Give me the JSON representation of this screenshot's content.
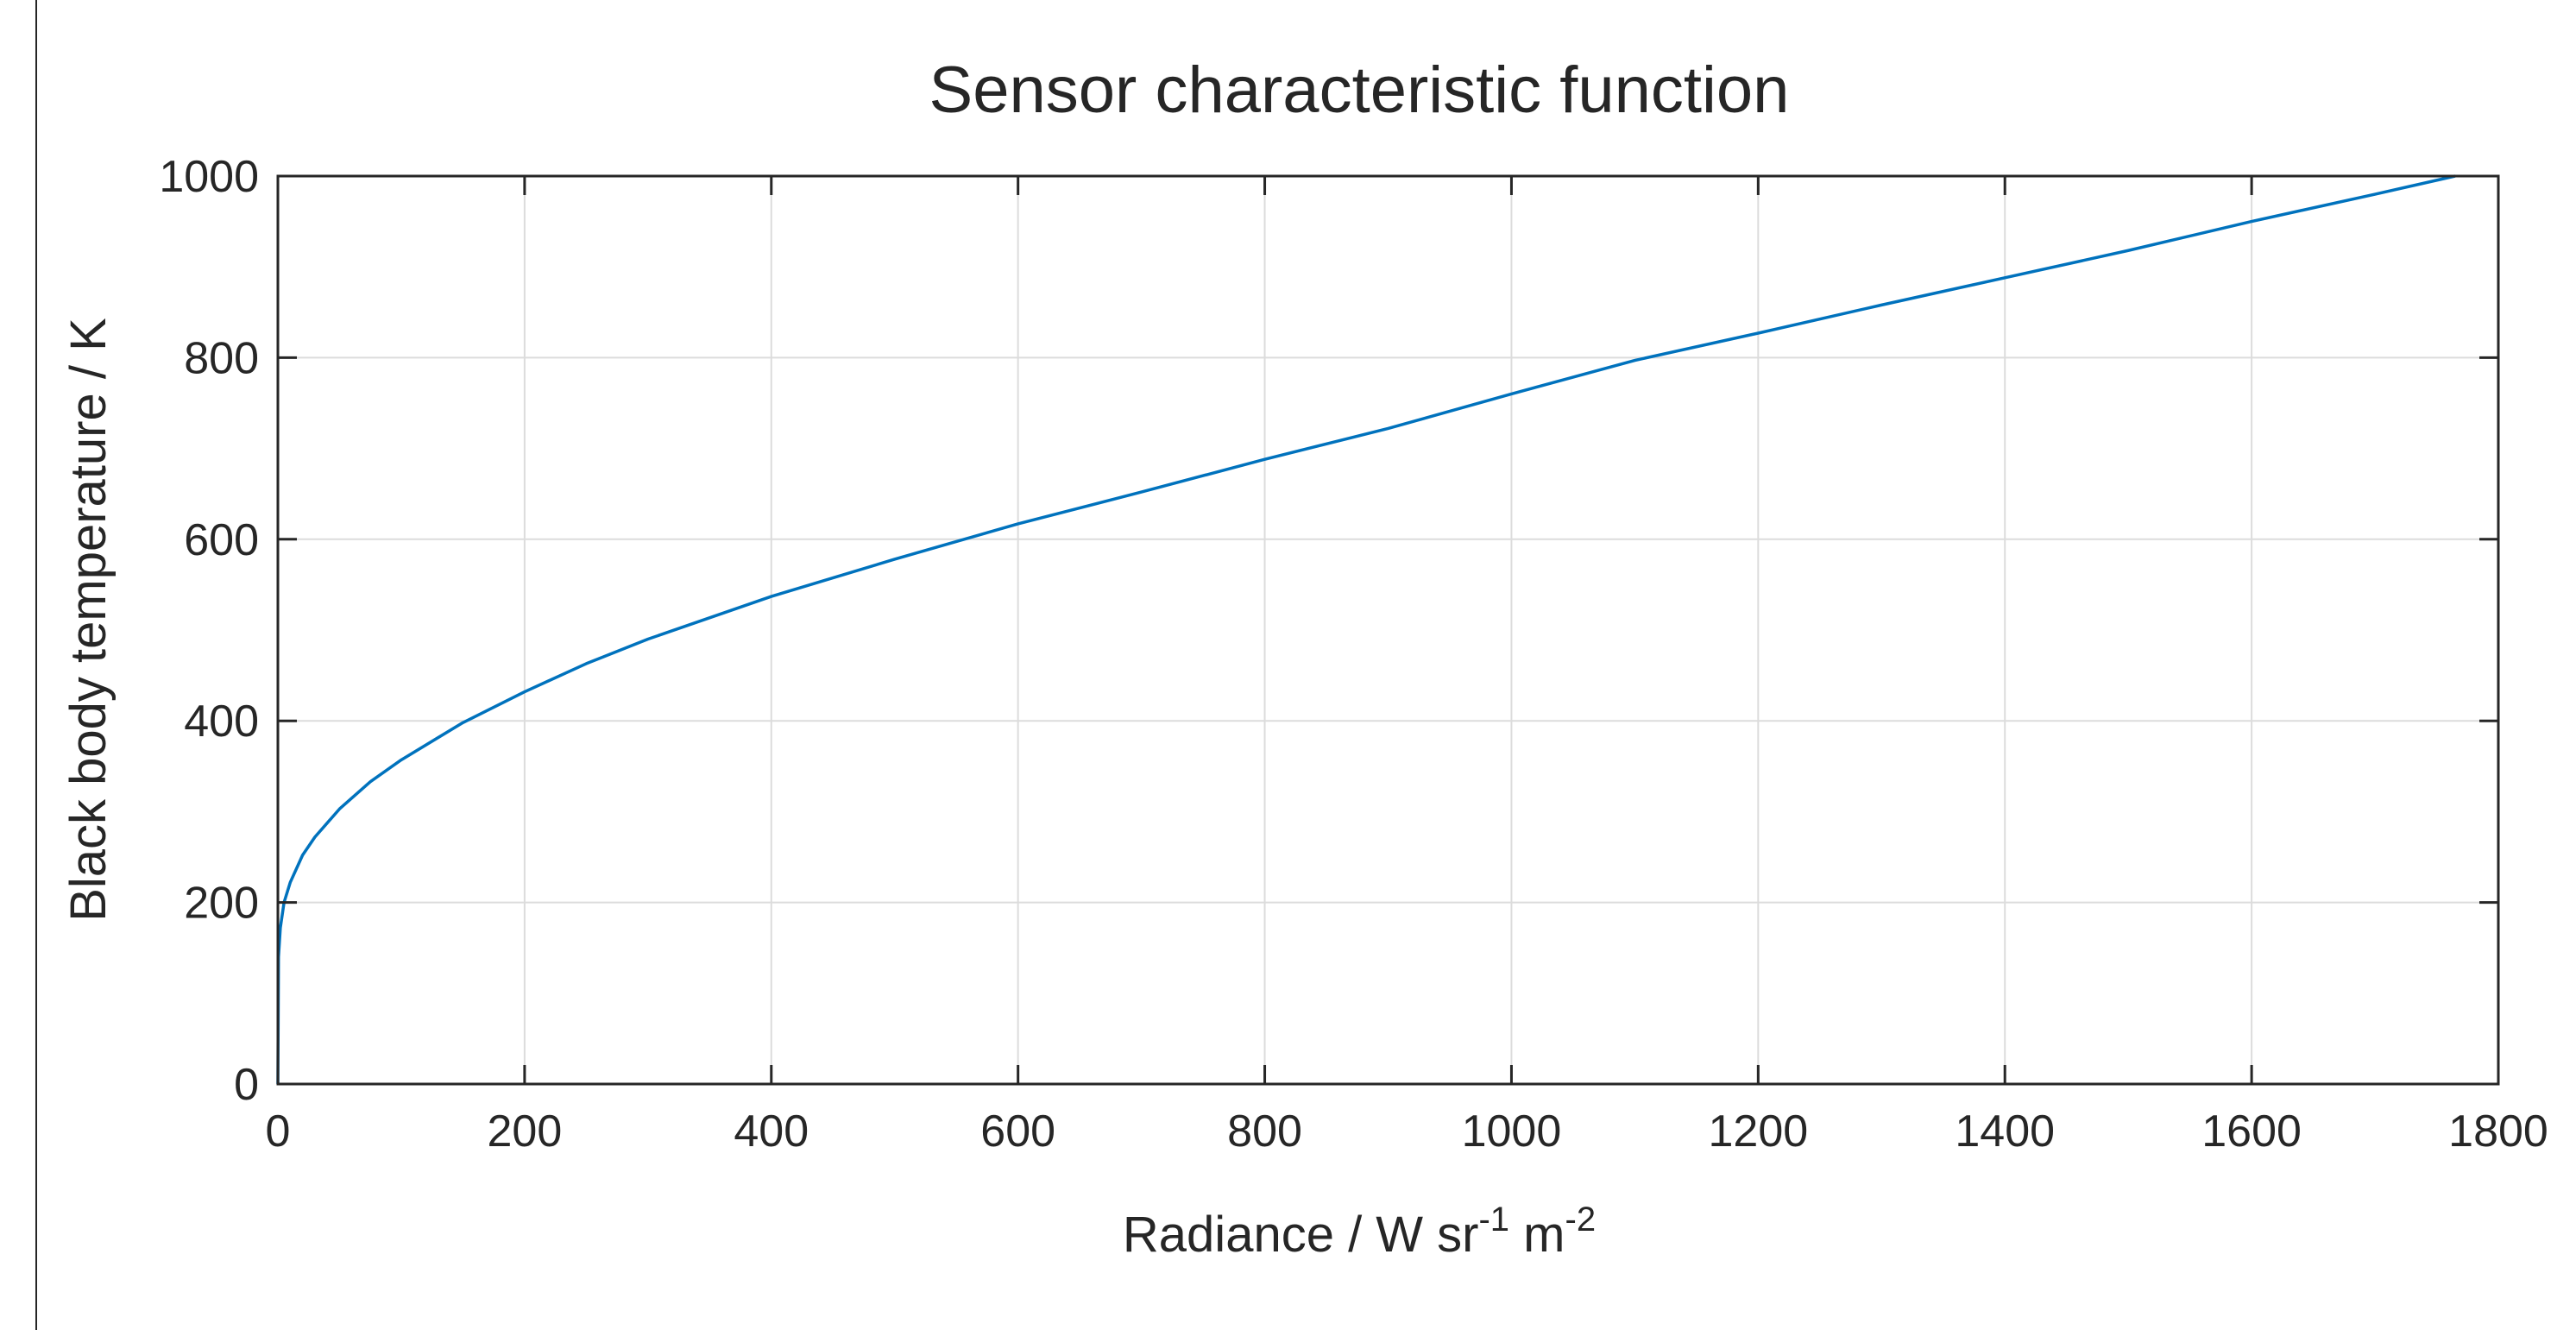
{
  "chart_data": {
    "type": "line",
    "title": "Sensor characteristic function",
    "xlabel": {
      "base": "Radiance / W sr",
      "exp1": "-1",
      "mid": " m",
      "exp2": "-2"
    },
    "ylabel": "Black body temperature / K",
    "xlim": [
      0,
      1800
    ],
    "ylim": [
      0,
      1000
    ],
    "xticks": [
      0,
      200,
      400,
      600,
      800,
      1000,
      1200,
      1400,
      1600,
      1800
    ],
    "yticks": [
      0,
      200,
      400,
      600,
      800,
      1000
    ],
    "xtick_labels": [
      "0",
      "200",
      "400",
      "600",
      "800",
      "1000",
      "1200",
      "1400",
      "1600",
      "1800"
    ],
    "ytick_labels": [
      "0",
      "200",
      "400",
      "600",
      "800",
      "1000"
    ],
    "grid": true,
    "series": [
      {
        "color": "#0072bd",
        "x": [
          0,
          0.5,
          2,
          5,
          10,
          20,
          30,
          50,
          75,
          100,
          150,
          200,
          250,
          300,
          400,
          500,
          600,
          700,
          800,
          900,
          1000,
          1100,
          1200,
          1300,
          1400,
          1500,
          1600,
          1700,
          1765
        ],
        "y": [
          0,
          140,
          172,
          200,
          222,
          252,
          272,
          303,
          333,
          357,
          398,
          432,
          463,
          490,
          537,
          578,
          617,
          652,
          688,
          722,
          760,
          797,
          827,
          858,
          888,
          918,
          950,
          980,
          1000
        ]
      }
    ]
  },
  "colors": {
    "line": "#0072bd",
    "grid": "#dcdcdc",
    "axis": "#262626"
  }
}
